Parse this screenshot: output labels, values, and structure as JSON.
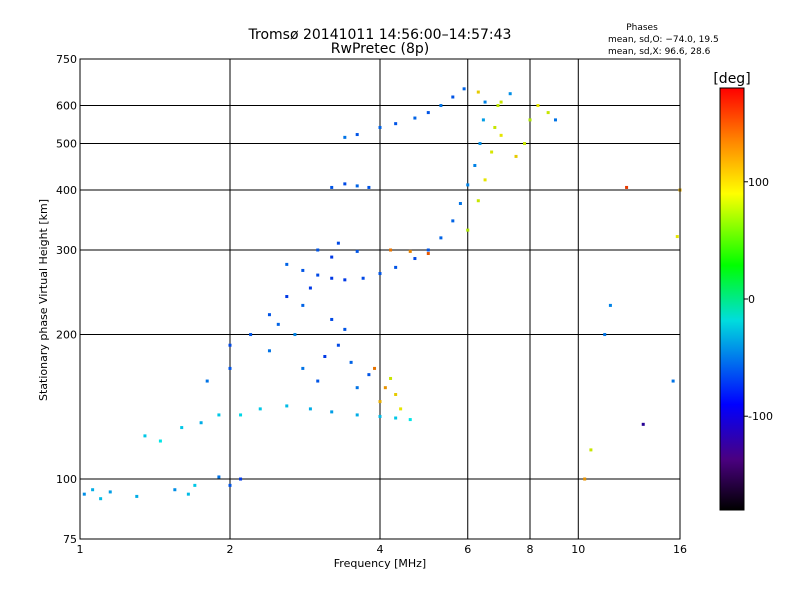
{
  "chart_data": {
    "type": "scatter",
    "title": "Tromsø 20141011 14:56:00–14:57:43",
    "subtitle": "RwPretec (8p)",
    "xlabel": "Frequency [MHz]",
    "ylabel": "Stationary phase Virtual Height [km]",
    "x_scale": "log",
    "y_scale": "log",
    "xlim": [
      1,
      16
    ],
    "ylim": [
      75,
      750
    ],
    "x_ticks": [
      1,
      2,
      4,
      6,
      8,
      10,
      16
    ],
    "x_tick_labels": [
      "1",
      "2",
      "4",
      "6",
      "8",
      "10",
      "16"
    ],
    "y_ticks": [
      75,
      100,
      200,
      300,
      400,
      500,
      600,
      750
    ],
    "y_tick_labels": [
      "75",
      "100",
      "200",
      "300",
      "400",
      "500",
      "600",
      "750"
    ],
    "grid": true,
    "phases_info": {
      "heading": "Phases",
      "line1": "mean, sd,O: −74.0, 19.5",
      "line2": "mean, sd,X:  96.6, 28.6"
    },
    "colorbar": {
      "label": "[deg]",
      "range": [
        -180,
        180
      ],
      "ticks": [
        100,
        0,
        -100
      ],
      "tick_labels": [
        "100",
        "0",
        "-100"
      ]
    },
    "series": [
      {
        "points": [
          [
            1.02,
            93,
            -90
          ],
          [
            1.06,
            95,
            -80
          ],
          [
            1.1,
            91,
            -75
          ],
          [
            1.15,
            94,
            -85
          ],
          [
            1.3,
            92,
            -80
          ],
          [
            1.55,
            95,
            -90
          ],
          [
            1.65,
            93,
            -75
          ],
          [
            1.7,
            97,
            -70
          ],
          [
            1.9,
            101,
            -100
          ],
          [
            2.0,
            97,
            -110
          ],
          [
            2.1,
            100,
            -120
          ]
        ]
      },
      {
        "points": [
          [
            1.35,
            123,
            -70
          ],
          [
            1.45,
            120,
            -60
          ],
          [
            1.6,
            128,
            -70
          ],
          [
            1.75,
            131,
            -80
          ],
          [
            1.9,
            136,
            -70
          ],
          [
            2.1,
            136,
            -65
          ],
          [
            2.3,
            140,
            -70
          ],
          [
            2.6,
            142,
            -75
          ],
          [
            2.9,
            140,
            -80
          ],
          [
            3.2,
            138,
            -85
          ],
          [
            3.6,
            136,
            -80
          ],
          [
            4.0,
            135,
            -75
          ],
          [
            4.3,
            134,
            -70
          ],
          [
            4.6,
            133,
            -60
          ]
        ]
      },
      {
        "points": [
          [
            1.8,
            160,
            -100
          ],
          [
            2.0,
            170,
            -110
          ],
          [
            2.0,
            190,
            -115
          ],
          [
            2.2,
            200,
            -110
          ],
          [
            2.4,
            185,
            -100
          ],
          [
            2.5,
            210,
            -105
          ],
          [
            2.7,
            200,
            -95
          ],
          [
            2.8,
            170,
            -100
          ],
          [
            3.0,
            160,
            -110
          ],
          [
            3.1,
            180,
            -120
          ],
          [
            3.3,
            190,
            -115
          ],
          [
            3.5,
            175,
            -105
          ],
          [
            3.6,
            155,
            -100
          ],
          [
            3.8,
            165,
            -110
          ]
        ]
      },
      {
        "points": [
          [
            2.4,
            220,
            -110
          ],
          [
            2.6,
            240,
            -120
          ],
          [
            2.8,
            230,
            -105
          ],
          [
            3.2,
            215,
            -115
          ],
          [
            3.4,
            205,
            -110
          ],
          [
            2.9,
            250,
            -120
          ]
        ]
      },
      {
        "points": [
          [
            4.0,
            145,
            120
          ],
          [
            4.1,
            155,
            130
          ],
          [
            4.3,
            150,
            110
          ],
          [
            4.4,
            140,
            100
          ],
          [
            4.2,
            162,
            90
          ],
          [
            3.9,
            170,
            140
          ]
        ]
      },
      {
        "points": [
          [
            2.6,
            280,
            -105
          ],
          [
            2.8,
            272,
            -110
          ],
          [
            3.0,
            266,
            -115
          ],
          [
            3.2,
            262,
            -120
          ],
          [
            3.4,
            260,
            -120
          ],
          [
            3.7,
            262,
            -115
          ],
          [
            4.0,
            268,
            -110
          ],
          [
            4.3,
            276,
            -110
          ],
          [
            4.7,
            288,
            -115
          ],
          [
            5.0,
            300,
            -110
          ],
          [
            5.3,
            318,
            -105
          ],
          [
            5.6,
            345,
            -105
          ],
          [
            5.8,
            375,
            -100
          ],
          [
            6.0,
            410,
            -95
          ],
          [
            6.2,
            450,
            -95
          ],
          [
            6.35,
            500,
            -90
          ],
          [
            6.45,
            560,
            -85
          ]
        ]
      },
      {
        "points": [
          [
            3.0,
            300,
            -110
          ],
          [
            3.3,
            310,
            -115
          ],
          [
            3.6,
            298,
            -110
          ],
          [
            3.2,
            290,
            -120
          ],
          [
            4.2,
            300,
            140
          ],
          [
            4.6,
            298,
            135
          ],
          [
            5.0,
            295,
            150
          ]
        ]
      },
      {
        "points": [
          [
            6.0,
            330,
            80
          ],
          [
            6.3,
            380,
            90
          ],
          [
            6.5,
            420,
            100
          ],
          [
            6.7,
            480,
            95
          ],
          [
            6.8,
            540,
            90
          ],
          [
            6.9,
            600,
            85
          ],
          [
            7.0,
            520,
            100
          ],
          [
            7.5,
            470,
            110
          ],
          [
            7.8,
            500,
            90
          ],
          [
            8.0,
            560,
            80
          ]
        ]
      },
      {
        "points": [
          [
            3.2,
            405,
            -110
          ],
          [
            3.4,
            412,
            -115
          ],
          [
            3.6,
            408,
            -105
          ],
          [
            3.8,
            405,
            -110
          ]
        ]
      },
      {
        "points": [
          [
            3.4,
            515,
            -100
          ],
          [
            3.6,
            522,
            -110
          ],
          [
            4.0,
            540,
            -105
          ],
          [
            4.3,
            550,
            -110
          ],
          [
            4.7,
            565,
            -105
          ],
          [
            5.0,
            580,
            -110
          ],
          [
            5.3,
            600,
            -100
          ],
          [
            5.6,
            625,
            -110
          ],
          [
            5.9,
            650,
            -105
          ]
        ]
      },
      {
        "points": [
          [
            6.3,
            640,
            110
          ],
          [
            6.5,
            610,
            -95
          ],
          [
            7.0,
            610,
            90
          ],
          [
            7.3,
            635,
            -90
          ],
          [
            8.3,
            600,
            100
          ],
          [
            8.7,
            580,
            90
          ],
          [
            9.0,
            560,
            -100
          ]
        ]
      },
      {
        "points": [
          [
            10.3,
            100,
            130
          ],
          [
            10.6,
            115,
            90
          ],
          [
            11.3,
            200,
            -100
          ],
          [
            11.6,
            230,
            -95
          ],
          [
            12.5,
            405,
            160
          ],
          [
            13.5,
            130,
            -160
          ],
          [
            15.5,
            160,
            -100
          ],
          [
            15.8,
            320,
            100
          ],
          [
            16.0,
            400,
            120
          ]
        ]
      }
    ]
  }
}
